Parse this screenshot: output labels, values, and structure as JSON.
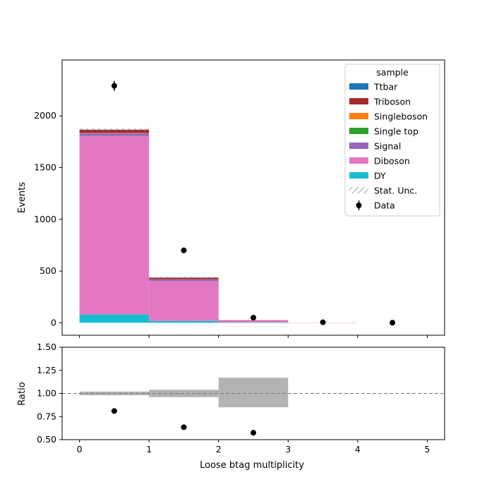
{
  "chart_data": {
    "type": "bar",
    "stacked": true,
    "xlabel": "Loose btag multiplicity",
    "xlim": [
      -0.25,
      5.25
    ],
    "xticks": [
      0,
      1,
      2,
      3,
      4,
      5
    ],
    "bin_edges": [
      0,
      1,
      2,
      3,
      4,
      5
    ],
    "upper": {
      "ylabel": "Events",
      "ylim": [
        -120,
        2540
      ],
      "yticks": [
        0,
        500,
        1000,
        1500,
        2000
      ],
      "series": [
        {
          "name": "DY",
          "color": "#17becf",
          "values": [
            80,
            18,
            3,
            0,
            0
          ]
        },
        {
          "name": "Diboson",
          "color": "#e377c2",
          "values": [
            1725,
            385,
            17,
            2,
            0
          ]
        },
        {
          "name": "Signal",
          "color": "#9467bd",
          "values": [
            25,
            15,
            2,
            0,
            0
          ]
        },
        {
          "name": "Single top",
          "color": "#2ca02c",
          "values": [
            2,
            1,
            0,
            0,
            0
          ]
        },
        {
          "name": "Singleboson",
          "color": "#ff7f0e",
          "values": [
            3,
            1,
            0,
            0,
            0
          ]
        },
        {
          "name": "Triboson",
          "color": "#a52a2a",
          "values": [
            30,
            16,
            3,
            0,
            0
          ]
        },
        {
          "name": "Ttbar",
          "color": "#1f77b4",
          "values": [
            2,
            1,
            0,
            0,
            0
          ]
        }
      ],
      "stat_unc": {
        "name": "Stat. Unc.",
        "low": [
          1853,
          429,
          23,
          2,
          0
        ],
        "high": [
          1881,
          445,
          27,
          2,
          0
        ]
      },
      "data": {
        "name": "Data",
        "x": [
          0.5,
          1.5,
          2.5,
          3.5,
          4.5
        ],
        "y": [
          2290,
          700,
          50,
          5,
          1
        ],
        "err": [
          48,
          26,
          7,
          2,
          1
        ]
      }
    },
    "ratio": {
      "ylabel": "Ratio",
      "ylim": [
        0.5,
        1.5
      ],
      "yticks": [
        "0.50",
        "0.75",
        "1.00",
        "1.25",
        "1.50"
      ],
      "reference": 1.0,
      "band_low": [
        0.98,
        0.96,
        0.85
      ],
      "band_high": [
        1.02,
        1.04,
        1.17
      ],
      "points": {
        "x": [
          0.5,
          1.5,
          2.5
        ],
        "y": [
          0.81,
          0.635,
          0.575
        ]
      }
    },
    "legend": {
      "title": "sample",
      "placement": "top-right",
      "entries": [
        {
          "label": "Ttbar",
          "kind": "patch",
          "color": "#1f77b4"
        },
        {
          "label": "Triboson",
          "kind": "patch",
          "color": "#a52a2a"
        },
        {
          "label": "Singleboson",
          "kind": "patch",
          "color": "#ff7f0e"
        },
        {
          "label": "Single top",
          "kind": "patch",
          "color": "#2ca02c"
        },
        {
          "label": "Signal",
          "kind": "patch",
          "color": "#9467bd"
        },
        {
          "label": "Diboson",
          "kind": "patch",
          "color": "#e377c2"
        },
        {
          "label": "DY",
          "kind": "patch",
          "color": "#17becf"
        },
        {
          "label": "Stat. Unc.",
          "kind": "hatch",
          "color": "#999999"
        },
        {
          "label": "Data",
          "kind": "errorbar",
          "color": "#000000"
        }
      ]
    }
  }
}
